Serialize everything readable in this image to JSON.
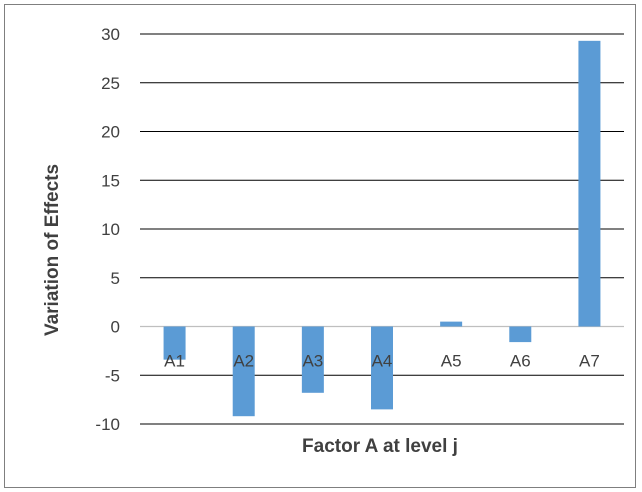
{
  "chart_data": {
    "type": "bar",
    "categories": [
      "A1",
      "A2",
      "A3",
      "A4",
      "A5",
      "A6",
      "A7"
    ],
    "values": [
      -3.4,
      -9.2,
      -6.8,
      -8.5,
      0.5,
      -1.6,
      29.3
    ],
    "title": "",
    "xlabel": "Factor A  at level j",
    "ylabel": "Variation of Effects",
    "ylim": [
      -10,
      30
    ],
    "yticks": [
      30,
      25,
      20,
      15,
      10,
      5,
      0,
      -5,
      -10
    ],
    "grid": true,
    "bar_color": "#5b9bd5",
    "legend": "none"
  }
}
